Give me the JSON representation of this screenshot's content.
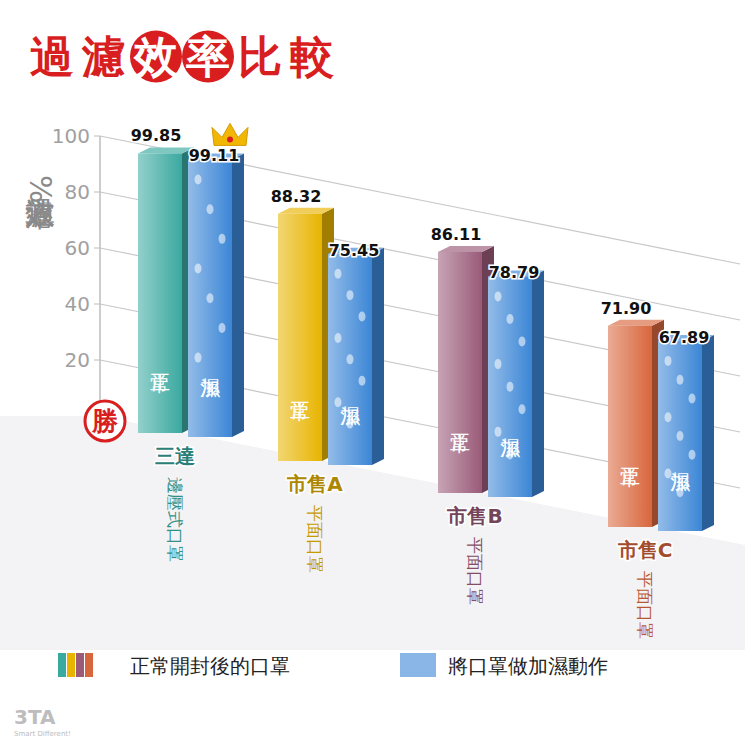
{
  "chart_data": {
    "type": "bar",
    "title": "過濾效率比較",
    "y_label": "過濾效率%",
    "categories": [
      "三達",
      "市售A",
      "市售B",
      "市售C"
    ],
    "subcategories": [
      "邊壓式口罩",
      "平面口罩",
      "平面口罩",
      "平面口罩"
    ],
    "series": [
      {
        "name": "正常開封後的口罩",
        "bar_text": "正常",
        "colors": [
          "#3aa9a0",
          "#e8b400",
          "#9a5a78",
          "#d8663c"
        ],
        "values": [
          99.85,
          88.32,
          86.11,
          71.9
        ],
        "value_labels": [
          "99.85",
          "88.32",
          "86.11",
          "71.90"
        ]
      },
      {
        "name": "將口罩做加濕動作",
        "bar_text": "加濕",
        "color": "#3b86d6",
        "values": [
          99.11,
          75.45,
          78.79,
          67.89
        ],
        "value_labels": [
          "99.11",
          "75.45",
          "78.79",
          "67.89"
        ]
      }
    ],
    "ylim": [
      0,
      100
    ],
    "yticks": [
      20,
      40,
      60,
      80,
      100
    ],
    "grid": true,
    "data_labels": true,
    "legend": "bottom",
    "winner_badge": "勝",
    "logo": "3TA",
    "logo_tagline": "Smart Different!"
  }
}
